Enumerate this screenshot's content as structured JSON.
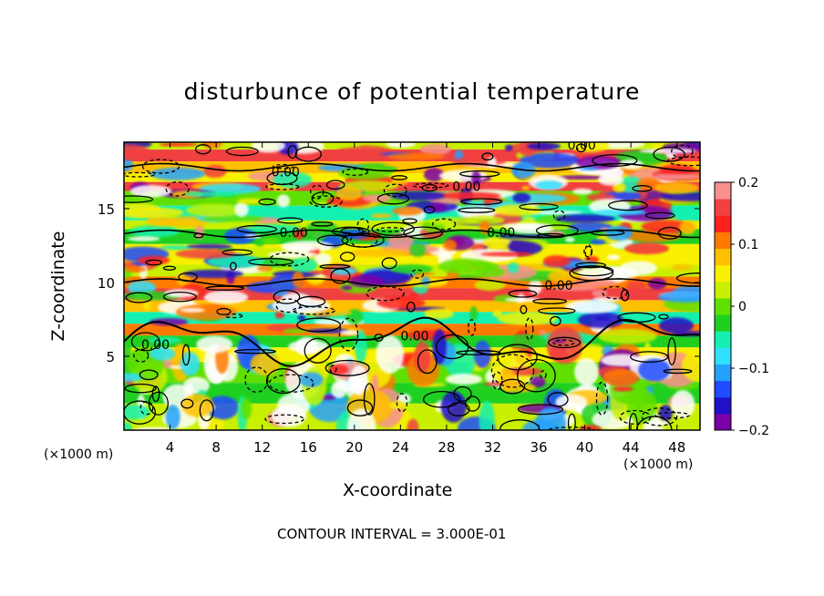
{
  "chart_data": {
    "type": "heatmap",
    "title": "disturbunce of potential temperature",
    "xlabel": "X-coordinate",
    "ylabel": "Z-coordinate",
    "x_unit_label": "(×1000 m)",
    "x_ticks": [
      4,
      8,
      12,
      16,
      20,
      24,
      28,
      32,
      36,
      40,
      44,
      48
    ],
    "y_ticks": [
      5,
      10,
      15
    ],
    "xlim": [
      0,
      50
    ],
    "ylim": [
      0,
      19.5
    ],
    "colorbar": {
      "range": [
        -0.2,
        0.2
      ],
      "tick_labels": [
        "0.2",
        "0.1",
        "0",
        "−0.1",
        "−0.2"
      ],
      "tick_values": [
        0.2,
        0.1,
        0,
        -0.1,
        -0.2
      ],
      "colors": [
        "#7a00a8",
        "#2010c8",
        "#1f4cff",
        "#25a0ff",
        "#2fe0ff",
        "#14f0b0",
        "#20d020",
        "#60e000",
        "#c8f000",
        "#f8f000",
        "#ffc000",
        "#ff7a00",
        "#ff2020",
        "#f04040",
        "#f89090"
      ]
    },
    "contour_labels": [
      "0.00",
      "0.00",
      "0.00",
      "0.00",
      "0.00",
      "0.00",
      "0.00",
      "0.00"
    ],
    "contour_interval_text": "CONTOUR INTERVAL = 3.000E-01"
  }
}
